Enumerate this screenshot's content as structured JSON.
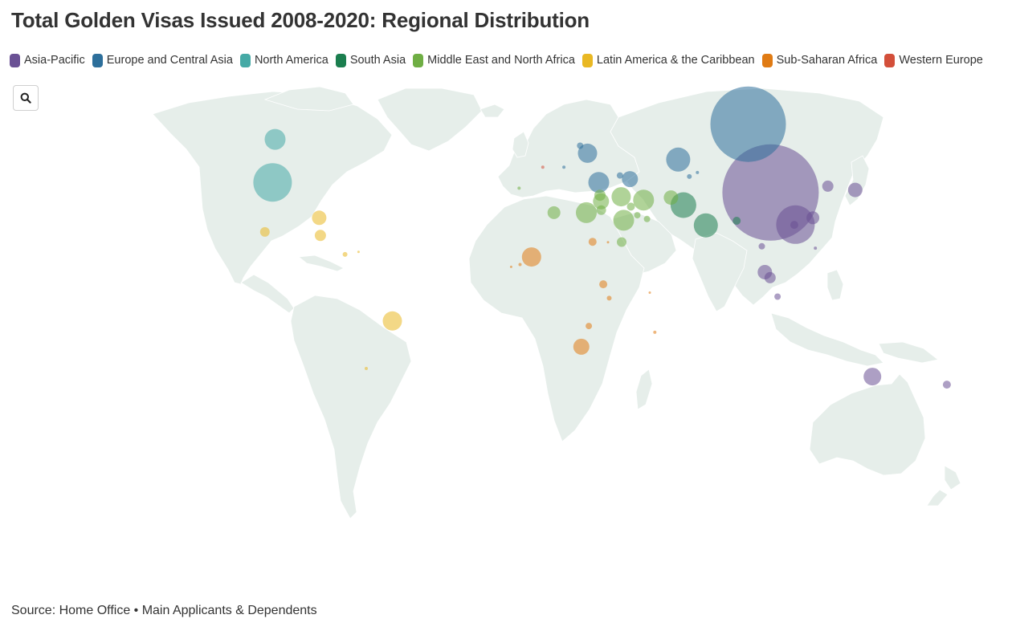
{
  "title": "Total Golden Visas Issued 2008-2020: Regional Distribution",
  "legend": [
    {
      "label": "Asia-Pacific",
      "color": "#6a5194"
    },
    {
      "label": "Europe and Central Asia",
      "color": "#2d6f9b"
    },
    {
      "label": "North America",
      "color": "#46aaa6"
    },
    {
      "label": "South Asia",
      "color": "#1b7e4f"
    },
    {
      "label": "Middle East and North Africa",
      "color": "#6fae44"
    },
    {
      "label": "Latin America & the Caribbean",
      "color": "#e9b823"
    },
    {
      "label": "Sub-Saharan Africa",
      "color": "#e07b14"
    },
    {
      "label": "Western Europe",
      "color": "#d34f3a"
    }
  ],
  "zoom_icon": "search-icon",
  "source": "Source: Home Office • Main Applicants & Dependents",
  "map_data": {
    "type": "bubble-map",
    "bubbles": [
      {
        "region": "Asia-Pacific",
        "lon": 104,
        "lat": 35,
        "size": 60
      },
      {
        "region": "Asia-Pacific",
        "lon": 114,
        "lat": 22.3,
        "size": 24
      },
      {
        "region": "Asia-Pacific",
        "lon": 121,
        "lat": 25,
        "size": 8
      },
      {
        "region": "Asia-Pacific",
        "lon": 127,
        "lat": 37.5,
        "size": 7
      },
      {
        "region": "Asia-Pacific",
        "lon": 138,
        "lat": 36,
        "size": 9
      },
      {
        "region": "Asia-Pacific",
        "lon": 113.5,
        "lat": 22.2,
        "size": 5
      },
      {
        "region": "Asia-Pacific",
        "lon": 101.7,
        "lat": 3.5,
        "size": 9
      },
      {
        "region": "Asia-Pacific",
        "lon": 103.8,
        "lat": 1.3,
        "size": 7
      },
      {
        "region": "Asia-Pacific",
        "lon": 100.5,
        "lat": 13.7,
        "size": 4
      },
      {
        "region": "Asia-Pacific",
        "lon": 106.8,
        "lat": -6.2,
        "size": 4
      },
      {
        "region": "Asia-Pacific",
        "lon": 122,
        "lat": 13,
        "size": 2
      },
      {
        "region": "Asia-Pacific",
        "lon": 144.9,
        "lat": -37.8,
        "size": 11
      },
      {
        "region": "Asia-Pacific",
        "lon": 174.8,
        "lat": -41,
        "size": 5
      },
      {
        "region": "Europe and Central Asia",
        "lon": 95,
        "lat": 62,
        "size": 47
      },
      {
        "region": "Europe and Central Asia",
        "lon": 66.9,
        "lat": 48,
        "size": 15
      },
      {
        "region": "Europe and Central Asia",
        "lon": 30.5,
        "lat": 50.5,
        "size": 12
      },
      {
        "region": "Europe and Central Asia",
        "lon": 35,
        "lat": 39,
        "size": 13
      },
      {
        "region": "Europe and Central Asia",
        "lon": 47.5,
        "lat": 40.3,
        "size": 10
      },
      {
        "region": "Europe and Central Asia",
        "lon": 43.5,
        "lat": 41.7,
        "size": 4
      },
      {
        "region": "Europe and Central Asia",
        "lon": 27.5,
        "lat": 53.5,
        "size": 4
      },
      {
        "region": "Europe and Central Asia",
        "lon": 71.4,
        "lat": 41.3,
        "size": 3
      },
      {
        "region": "Europe and Central Asia",
        "lon": 74.6,
        "lat": 42.9,
        "size": 2
      },
      {
        "region": "Europe and Central Asia",
        "lon": 21,
        "lat": 45,
        "size": 2
      },
      {
        "region": "North America",
        "lon": -96,
        "lat": 39,
        "size": 24
      },
      {
        "region": "North America",
        "lon": -95,
        "lat": 56,
        "size": 13
      },
      {
        "region": "South Asia",
        "lon": 69,
        "lat": 30,
        "size": 16
      },
      {
        "region": "South Asia",
        "lon": 78,
        "lat": 22,
        "size": 15
      },
      {
        "region": "South Asia",
        "lon": 90.4,
        "lat": 23.8,
        "size": 5
      },
      {
        "region": "Middle East and North Africa",
        "lon": 53,
        "lat": 32,
        "size": 13
      },
      {
        "region": "Middle East and North Africa",
        "lon": 45,
        "lat": 24,
        "size": 13
      },
      {
        "region": "Middle East and North Africa",
        "lon": 44,
        "lat": 33.3,
        "size": 12
      },
      {
        "region": "Middle East and North Africa",
        "lon": 30,
        "lat": 27,
        "size": 13
      },
      {
        "region": "Middle East and North Africa",
        "lon": 35.9,
        "lat": 31.5,
        "size": 10
      },
      {
        "region": "Middle East and North Africa",
        "lon": 35.5,
        "lat": 33.9,
        "size": 7
      },
      {
        "region": "Middle East and North Africa",
        "lon": 36,
        "lat": 28,
        "size": 6
      },
      {
        "region": "Middle East and North Africa",
        "lon": 17,
        "lat": 27,
        "size": 8
      },
      {
        "region": "Middle East and North Africa",
        "lon": 64,
        "lat": 33,
        "size": 9
      },
      {
        "region": "Middle East and North Africa",
        "lon": 44.2,
        "lat": 15.4,
        "size": 6
      },
      {
        "region": "Middle East and North Africa",
        "lon": 47.9,
        "lat": 29.4,
        "size": 5
      },
      {
        "region": "Middle East and North Africa",
        "lon": 50.5,
        "lat": 26,
        "size": 4
      },
      {
        "region": "Middle East and North Africa",
        "lon": 54.4,
        "lat": 24.5,
        "size": 4
      },
      {
        "region": "Middle East and North Africa",
        "lon": 3,
        "lat": 36.7,
        "size": 2
      },
      {
        "region": "Latin America & the Caribbean",
        "lon": -47.9,
        "lat": -15.8,
        "size": 12
      },
      {
        "region": "Latin America & the Caribbean",
        "lon": -77.3,
        "lat": 25,
        "size": 9
      },
      {
        "region": "Latin America & the Caribbean",
        "lon": -76.8,
        "lat": 18,
        "size": 7
      },
      {
        "region": "Latin America & the Caribbean",
        "lon": -99.1,
        "lat": 19.4,
        "size": 6
      },
      {
        "region": "Latin America & the Caribbean",
        "lon": -66.9,
        "lat": 10.5,
        "size": 3
      },
      {
        "region": "Latin America & the Caribbean",
        "lon": -61.5,
        "lat": 11.5,
        "size": 1.5
      },
      {
        "region": "Latin America & the Caribbean",
        "lon": -58.4,
        "lat": -34.6,
        "size": 2
      },
      {
        "region": "Sub-Saharan Africa",
        "lon": 8,
        "lat": 9.5,
        "size": 12
      },
      {
        "region": "Sub-Saharan Africa",
        "lon": 28,
        "lat": -26,
        "size": 10
      },
      {
        "region": "Sub-Saharan Africa",
        "lon": 36.8,
        "lat": -1.3,
        "size": 5
      },
      {
        "region": "Sub-Saharan Africa",
        "lon": 32.5,
        "lat": 15.5,
        "size": 5
      },
      {
        "region": "Sub-Saharan Africa",
        "lon": 39.2,
        "lat": -6.8,
        "size": 3
      },
      {
        "region": "Sub-Saharan Africa",
        "lon": 31,
        "lat": -17.8,
        "size": 4
      },
      {
        "region": "Sub-Saharan Africa",
        "lon": 57.5,
        "lat": -20.3,
        "size": 2
      },
      {
        "region": "Sub-Saharan Africa",
        "lon": 55.5,
        "lat": -4.6,
        "size": 1.5
      },
      {
        "region": "Sub-Saharan Africa",
        "lon": 3.4,
        "lat": 6.5,
        "size": 2
      },
      {
        "region": "Sub-Saharan Africa",
        "lon": -0.2,
        "lat": 5.6,
        "size": 1.5
      },
      {
        "region": "Sub-Saharan Africa",
        "lon": 38.7,
        "lat": 15.3,
        "size": 1.5
      },
      {
        "region": "Western Europe",
        "lon": 12.5,
        "lat": 45,
        "size": 2
      }
    ]
  }
}
